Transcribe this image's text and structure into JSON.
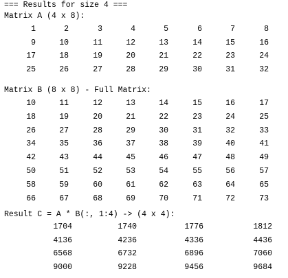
{
  "console": {
    "header": "=== Results for size 4 ===",
    "matrix_a": {
      "label": "Matrix A (4 x 8):",
      "rows": [
        [
          "1",
          "2",
          "3",
          "4",
          "5",
          "6",
          "7",
          "8"
        ],
        [
          "9",
          "10",
          "11",
          "12",
          "13",
          "14",
          "15",
          "16"
        ],
        [
          "17",
          "18",
          "19",
          "20",
          "21",
          "22",
          "23",
          "24"
        ],
        [
          "25",
          "26",
          "27",
          "28",
          "29",
          "30",
          "31",
          "32"
        ]
      ]
    },
    "matrix_b": {
      "label": "Matrix B (8 x 8) - Full Matrix:",
      "rows": [
        [
          "10",
          "11",
          "12",
          "13",
          "14",
          "15",
          "16",
          "17"
        ],
        [
          "18",
          "19",
          "20",
          "21",
          "22",
          "23",
          "24",
          "25"
        ],
        [
          "26",
          "27",
          "28",
          "29",
          "30",
          "31",
          "32",
          "33"
        ],
        [
          "34",
          "35",
          "36",
          "37",
          "38",
          "39",
          "40",
          "41"
        ],
        [
          "42",
          "43",
          "44",
          "45",
          "46",
          "47",
          "48",
          "49"
        ],
        [
          "50",
          "51",
          "52",
          "53",
          "54",
          "55",
          "56",
          "57"
        ],
        [
          "58",
          "59",
          "60",
          "61",
          "62",
          "63",
          "64",
          "65"
        ],
        [
          "66",
          "67",
          "68",
          "69",
          "70",
          "71",
          "72",
          "73"
        ]
      ]
    },
    "result_c": {
      "label": "Result C = A * B(:, 1:4) -> (4 x 4):",
      "rows": [
        [
          "1704",
          "1740",
          "1776",
          "1812"
        ],
        [
          "4136",
          "4236",
          "4336",
          "4436"
        ],
        [
          "6568",
          "6732",
          "6896",
          "7060"
        ],
        [
          "9000",
          "9228",
          "9456",
          "9684"
        ]
      ]
    }
  }
}
